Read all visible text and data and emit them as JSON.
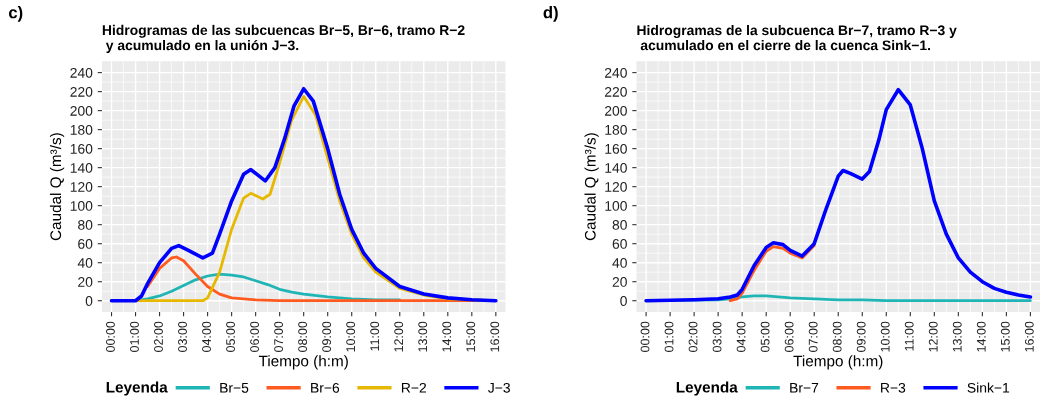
{
  "chart_data": [
    {
      "type": "line",
      "title": "Hidrogramas de las subcuencas Br−5, Br−6, tramo R−2\n y acumulado en la unión J−3.",
      "xlabel": "Tiempo (h:m)",
      "ylabel": "Caudal Q (m³/s)",
      "legend_title": "Leyenda",
      "legend": "bottom",
      "grid": true,
      "annotations": [
        "c)"
      ],
      "xlim": [
        -0.4,
        16.4
      ],
      "ylim": [
        -12,
        252
      ],
      "xticks": [
        {
          "value": 0,
          "label": "00:00"
        },
        {
          "value": 1,
          "label": "01:00"
        },
        {
          "value": 2,
          "label": "02:00"
        },
        {
          "value": 3,
          "label": "03:00"
        },
        {
          "value": 4,
          "label": "04:00"
        },
        {
          "value": 5,
          "label": "05:00"
        },
        {
          "value": 6,
          "label": "06:00"
        },
        {
          "value": 7,
          "label": "07:00"
        },
        {
          "value": 8,
          "label": "08:00"
        },
        {
          "value": 9,
          "label": "09:00"
        },
        {
          "value": 10,
          "label": "10:00"
        },
        {
          "value": 11,
          "label": "11:00"
        },
        {
          "value": 12,
          "label": "12:00"
        },
        {
          "value": 13,
          "label": "13:00"
        },
        {
          "value": 14,
          "label": "14:00"
        },
        {
          "value": 15,
          "label": "15:00"
        },
        {
          "value": 16,
          "label": "16:00"
        }
      ],
      "yticks": [
        0,
        20,
        40,
        60,
        80,
        100,
        120,
        140,
        160,
        180,
        200,
        220,
        240
      ],
      "series": [
        {
          "name": "Br−5",
          "color": "#1fb5b5",
          "x": [
            0,
            1,
            1.5,
            2,
            2.5,
            3,
            3.5,
            4,
            4.5,
            5,
            5.5,
            6,
            6.5,
            7,
            7.5,
            8,
            9,
            10,
            11,
            12
          ],
          "values": [
            0,
            0,
            2,
            5,
            10,
            16,
            22,
            26,
            28,
            27,
            25,
            21,
            17,
            12,
            9,
            7,
            4,
            2,
            1,
            1
          ]
        },
        {
          "name": "Br−6",
          "color": "#ff5a1f",
          "x": [
            1.5,
            2,
            2.5,
            2.7,
            3,
            3.5,
            4,
            4.5,
            5,
            6,
            7,
            16
          ],
          "values": [
            15,
            34,
            45,
            46,
            42,
            28,
            15,
            7,
            3,
            1,
            0,
            0
          ]
        },
        {
          "name": "R−2",
          "color": "#e6b800",
          "x": [
            0,
            3.8,
            4,
            4.5,
            5,
            5.5,
            5.8,
            6.3,
            6.6,
            7,
            7.5,
            8,
            8.5,
            9,
            9.5,
            10,
            10.5,
            11,
            12,
            13,
            14,
            15,
            16
          ],
          "values": [
            0,
            0,
            3,
            30,
            75,
            108,
            113,
            107,
            112,
            145,
            190,
            215,
            195,
            150,
            105,
            70,
            45,
            30,
            13,
            6,
            2,
            1,
            0
          ]
        },
        {
          "name": "J−3",
          "color": "#0000ff",
          "x": [
            0,
            1,
            1.25,
            1.5,
            2,
            2.5,
            2.8,
            3.2,
            3.8,
            4.2,
            4.5,
            5,
            5.5,
            5.8,
            6.4,
            6.8,
            7.2,
            7.6,
            8,
            8.4,
            9,
            9.5,
            10,
            10.5,
            11,
            12,
            13,
            14,
            15,
            16
          ],
          "values": [
            0,
            0,
            5,
            18,
            40,
            55,
            58,
            53,
            45,
            50,
            70,
            105,
            133,
            138,
            126,
            140,
            170,
            205,
            223,
            210,
            160,
            112,
            75,
            50,
            34,
            15,
            7,
            3,
            1,
            0
          ]
        }
      ]
    },
    {
      "type": "line",
      "title": "Hidrogramas de la subcuenca Br−7, tramo R−3 y\n acumulado en el cierre de la cuenca Sink−1.",
      "xlabel": "Tiempo (h:m)",
      "ylabel": "Caudal Q (m³/s)",
      "legend_title": "Leyenda",
      "legend": "bottom",
      "grid": true,
      "annotations": [
        "d)"
      ],
      "xlim": [
        -0.4,
        16.4
      ],
      "ylim": [
        -12,
        252
      ],
      "xticks": [
        {
          "value": 0,
          "label": "00:00"
        },
        {
          "value": 1,
          "label": "01:00"
        },
        {
          "value": 2,
          "label": "02:00"
        },
        {
          "value": 3,
          "label": "03:00"
        },
        {
          "value": 4,
          "label": "04:00"
        },
        {
          "value": 5,
          "label": "05:00"
        },
        {
          "value": 6,
          "label": "06:00"
        },
        {
          "value": 7,
          "label": "07:00"
        },
        {
          "value": 8,
          "label": "08:00"
        },
        {
          "value": 9,
          "label": "09:00"
        },
        {
          "value": 10,
          "label": "10:00"
        },
        {
          "value": 11,
          "label": "11:00"
        },
        {
          "value": 12,
          "label": "12:00"
        },
        {
          "value": 13,
          "label": "13:00"
        },
        {
          "value": 14,
          "label": "14:00"
        },
        {
          "value": 15,
          "label": "15:00"
        },
        {
          "value": 16,
          "label": "16:00"
        }
      ],
      "yticks": [
        0,
        20,
        40,
        60,
        80,
        100,
        120,
        140,
        160,
        180,
        200,
        220,
        240
      ],
      "series": [
        {
          "name": "Br−7",
          "color": "#1fb5b5",
          "x": [
            0,
            3,
            3.5,
            4,
            4.5,
            5,
            5.5,
            6,
            7,
            8,
            9,
            10,
            16
          ],
          "values": [
            0,
            1,
            2,
            4,
            5,
            5,
            4,
            3,
            2,
            1,
            1,
            0,
            0
          ]
        },
        {
          "name": "R−3",
          "color": "#ff5a1f",
          "x": [
            3.5,
            3.8,
            4,
            4.5,
            5,
            5.3,
            5.7,
            6,
            6.5,
            7
          ],
          "values": [
            0,
            2,
            8,
            32,
            52,
            57,
            55,
            50,
            45,
            58
          ]
        },
        {
          "name": "Sink−1",
          "color": "#0000ff",
          "x": [
            0,
            2,
            3,
            3.5,
            3.8,
            4,
            4.5,
            5,
            5.3,
            5.7,
            6,
            6.5,
            7,
            7.5,
            8,
            8.2,
            8.5,
            9,
            9.3,
            9.7,
            10,
            10.5,
            11,
            11.5,
            12,
            12.5,
            13,
            13.5,
            14,
            14.5,
            15,
            15.5,
            16
          ],
          "values": [
            0,
            1,
            2,
            4,
            6,
            12,
            37,
            56,
            61,
            59,
            53,
            47,
            60,
            97,
            131,
            137,
            134,
            128,
            136,
            170,
            201,
            222,
            206,
            160,
            105,
            70,
            45,
            30,
            20,
            13,
            9,
            6,
            4
          ]
        }
      ]
    }
  ]
}
